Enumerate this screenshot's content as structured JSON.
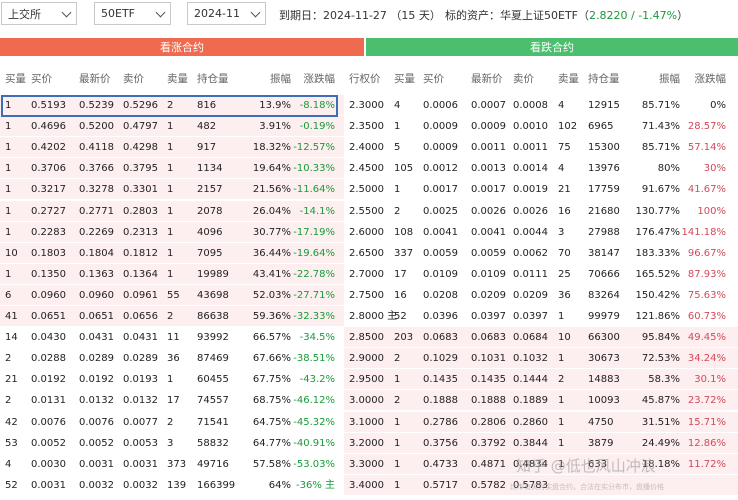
{
  "toolbar": {
    "exchange": "上交所",
    "underlying": "50ETF",
    "month": "2024-11",
    "expiry_text": "到期日：2024-11-27 （15 天）",
    "asset_label": "标的资产：华夏上证50ETF（",
    "asset_price": "2.8220 / -1.47%",
    "asset_close": "）"
  },
  "sections": {
    "call": "看涨合约",
    "put": "看跌合约"
  },
  "call_columns": [
    "买量",
    "买价",
    "最新价",
    "卖价",
    "卖量",
    "持仓量",
    "振幅",
    "涨跌幅"
  ],
  "strike_column": "行权价",
  "put_columns": [
    "买量",
    "买价",
    "最新价",
    "卖价",
    "卖量",
    "持仓量",
    "振幅",
    "涨跌幅"
  ],
  "rows": [
    {
      "call": [
        "1",
        "0.5193",
        "0.5239",
        "0.5296",
        "2",
        "816",
        "13.9%",
        "-8.18%"
      ],
      "strike": "2.3000",
      "put": [
        "4",
        "0.0006",
        "0.0007",
        "0.0008",
        "4",
        "12915",
        "85.71%",
        "0%"
      ]
    },
    {
      "call": [
        "1",
        "0.4696",
        "0.5200",
        "0.4797",
        "1",
        "482",
        "3.91%",
        "-0.19%"
      ],
      "strike": "2.3500",
      "put": [
        "1",
        "0.0009",
        "0.0009",
        "0.0010",
        "102",
        "6965",
        "71.43%",
        "28.57%"
      ]
    },
    {
      "call": [
        "1",
        "0.4202",
        "0.4118",
        "0.4298",
        "1",
        "917",
        "18.32%",
        "-12.57%"
      ],
      "strike": "2.4000",
      "put": [
        "5",
        "0.0009",
        "0.0011",
        "0.0011",
        "75",
        "15300",
        "85.71%",
        "57.14%"
      ]
    },
    {
      "call": [
        "1",
        "0.3706",
        "0.3766",
        "0.3795",
        "1",
        "1134",
        "19.64%",
        "-10.33%"
      ],
      "strike": "2.4500",
      "put": [
        "105",
        "0.0012",
        "0.0013",
        "0.0014",
        "4",
        "13976",
        "80%",
        "30%"
      ]
    },
    {
      "call": [
        "1",
        "0.3217",
        "0.3278",
        "0.3301",
        "1",
        "2157",
        "21.56%",
        "-11.64%"
      ],
      "strike": "2.5000",
      "put": [
        "1",
        "0.0017",
        "0.0017",
        "0.0019",
        "21",
        "17759",
        "91.67%",
        "41.67%"
      ]
    },
    {
      "call": [
        "1",
        "0.2727",
        "0.2771",
        "0.2803",
        "1",
        "2078",
        "26.04%",
        "-14.1%"
      ],
      "strike": "2.5500",
      "put": [
        "2",
        "0.0025",
        "0.0026",
        "0.0026",
        "16",
        "21680",
        "130.77%",
        "100%"
      ]
    },
    {
      "call": [
        "1",
        "0.2283",
        "0.2269",
        "0.2313",
        "1",
        "4096",
        "30.77%",
        "-17.19%"
      ],
      "strike": "2.6000",
      "put": [
        "108",
        "0.0041",
        "0.0041",
        "0.0044",
        "3",
        "27988",
        "176.47%",
        "141.18%"
      ]
    },
    {
      "call": [
        "10",
        "0.1803",
        "0.1804",
        "0.1812",
        "1",
        "7095",
        "36.44%",
        "-19.64%"
      ],
      "strike": "2.6500",
      "put": [
        "337",
        "0.0059",
        "0.0059",
        "0.0062",
        "70",
        "38147",
        "183.33%",
        "96.67%"
      ]
    },
    {
      "call": [
        "1",
        "0.1350",
        "0.1363",
        "0.1364",
        "1",
        "19989",
        "43.41%",
        "-22.78%"
      ],
      "strike": "2.7000",
      "put": [
        "17",
        "0.0109",
        "0.0109",
        "0.0111",
        "25",
        "70666",
        "165.52%",
        "87.93%"
      ]
    },
    {
      "call": [
        "6",
        "0.0960",
        "0.0960",
        "0.0961",
        "55",
        "43698",
        "52.03%",
        "-27.71%"
      ],
      "strike": "2.7500",
      "put": [
        "16",
        "0.0208",
        "0.0209",
        "0.0209",
        "36",
        "83264",
        "150.42%",
        "75.63%"
      ]
    },
    {
      "call": [
        "41",
        "0.0651",
        "0.0651",
        "0.0656",
        "2",
        "86638",
        "59.36%",
        "-32.33%"
      ],
      "strike": "2.8000 主",
      "put": [
        "52",
        "0.0396",
        "0.0397",
        "0.0397",
        "1",
        "99979",
        "121.86%",
        "60.73%"
      ]
    },
    {
      "call": [
        "14",
        "0.0430",
        "0.0431",
        "0.0431",
        "11",
        "93992",
        "66.57%",
        "-34.5%"
      ],
      "strike": "2.8500",
      "put": [
        "203",
        "0.0683",
        "0.0683",
        "0.0684",
        "10",
        "66300",
        "95.84%",
        "49.45%"
      ]
    },
    {
      "call": [
        "2",
        "0.0288",
        "0.0289",
        "0.0289",
        "36",
        "87469",
        "67.66%",
        "-38.51%"
      ],
      "strike": "2.9000",
      "put": [
        "2",
        "0.1029",
        "0.1031",
        "0.1032",
        "1",
        "30673",
        "72.53%",
        "34.24%"
      ]
    },
    {
      "call": [
        "21",
        "0.0192",
        "0.0192",
        "0.0193",
        "1",
        "60455",
        "67.75%",
        "-43.2%"
      ],
      "strike": "2.9500",
      "put": [
        "1",
        "0.1435",
        "0.1435",
        "0.1444",
        "2",
        "14883",
        "58.3%",
        "30.1%"
      ]
    },
    {
      "call": [
        "2",
        "0.0131",
        "0.0132",
        "0.0132",
        "17",
        "74557",
        "68.75%",
        "-46.12%"
      ],
      "strike": "3.0000",
      "put": [
        "2",
        "0.1888",
        "0.1888",
        "0.1889",
        "1",
        "10093",
        "45.87%",
        "23.72%"
      ]
    },
    {
      "call": [
        "42",
        "0.0076",
        "0.0076",
        "0.0077",
        "2",
        "71541",
        "64.75%",
        "-45.32%"
      ],
      "strike": "3.1000",
      "put": [
        "1",
        "0.2786",
        "0.2806",
        "0.2860",
        "1",
        "4750",
        "31.51%",
        "15.71%"
      ]
    },
    {
      "call": [
        "53",
        "0.0052",
        "0.0052",
        "0.0053",
        "3",
        "58832",
        "64.77%",
        "-40.91%"
      ],
      "strike": "3.2000",
      "put": [
        "1",
        "0.3756",
        "0.3792",
        "0.3844",
        "1",
        "3879",
        "24.49%",
        "12.86%"
      ]
    },
    {
      "call": [
        "4",
        "0.0030",
        "0.0031",
        "0.0031",
        "373",
        "49716",
        "57.58%",
        "-53.03%"
      ],
      "strike": "3.3000",
      "put": [
        "1",
        "0.4733",
        "0.4871",
        "0.4834",
        "1",
        "633",
        "18.18%",
        "11.72%"
      ]
    },
    {
      "call": [
        "52",
        "0.0031",
        "0.0032",
        "0.0032",
        "139",
        "166399",
        "64%",
        "-36% 主"
      ],
      "strike": "3.4000",
      "put": [
        "1",
        "0.5717",
        "0.5782",
        "0.5783",
        "",
        "",
        "",
        ""
      ]
    }
  ],
  "watermark": {
    "main": "知乎 @低也风山冲浪",
    "sub": "比市有关为实盘合约，合法在实分布市，盘播价格"
  },
  "colors": {
    "call_header": "#ef6a4f",
    "put_header": "#4cbf6e",
    "pink_row": "#fdeef0",
    "down": "#1a9a3a",
    "up": "#d24a5a",
    "selection": "#3d6fb8"
  }
}
